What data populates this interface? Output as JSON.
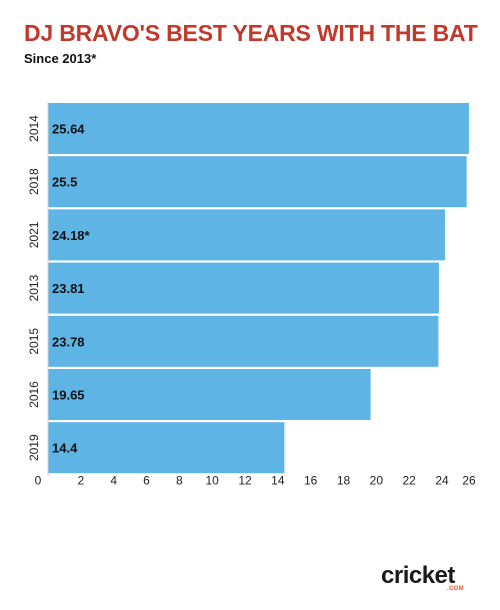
{
  "header": {
    "title": "DJ BRAVO'S BEST YEARS WITH THE BAT",
    "subtitle": "Since 2013*"
  },
  "brand": {
    "name": "cricket",
    "sub": ".COM"
  },
  "colors": {
    "title": "#c0392b",
    "bar": "#5eb5e5",
    "brand_accent": "#e8581c"
  },
  "chart_data": {
    "type": "bar",
    "orientation": "horizontal",
    "title": "DJ BRAVO'S BEST YEARS WITH THE BAT",
    "subtitle": "Since 2013*",
    "xlabel": "",
    "ylabel": "",
    "categories": [
      "2014",
      "2018",
      "2021",
      "2013",
      "2015",
      "2016",
      "2019"
    ],
    "values": [
      25.64,
      25.5,
      24.18,
      23.81,
      23.78,
      19.65,
      14.4
    ],
    "data_labels": [
      "25.64",
      "25.5",
      "24.18*",
      "23.81",
      "23.78",
      "19.65",
      "14.4"
    ],
    "x_ticks": [
      0,
      2,
      4,
      6,
      8,
      10,
      12,
      14,
      16,
      18,
      20,
      22,
      24,
      26
    ],
    "xlim": [
      0,
      26
    ],
    "grid": false,
    "legend": "none"
  }
}
